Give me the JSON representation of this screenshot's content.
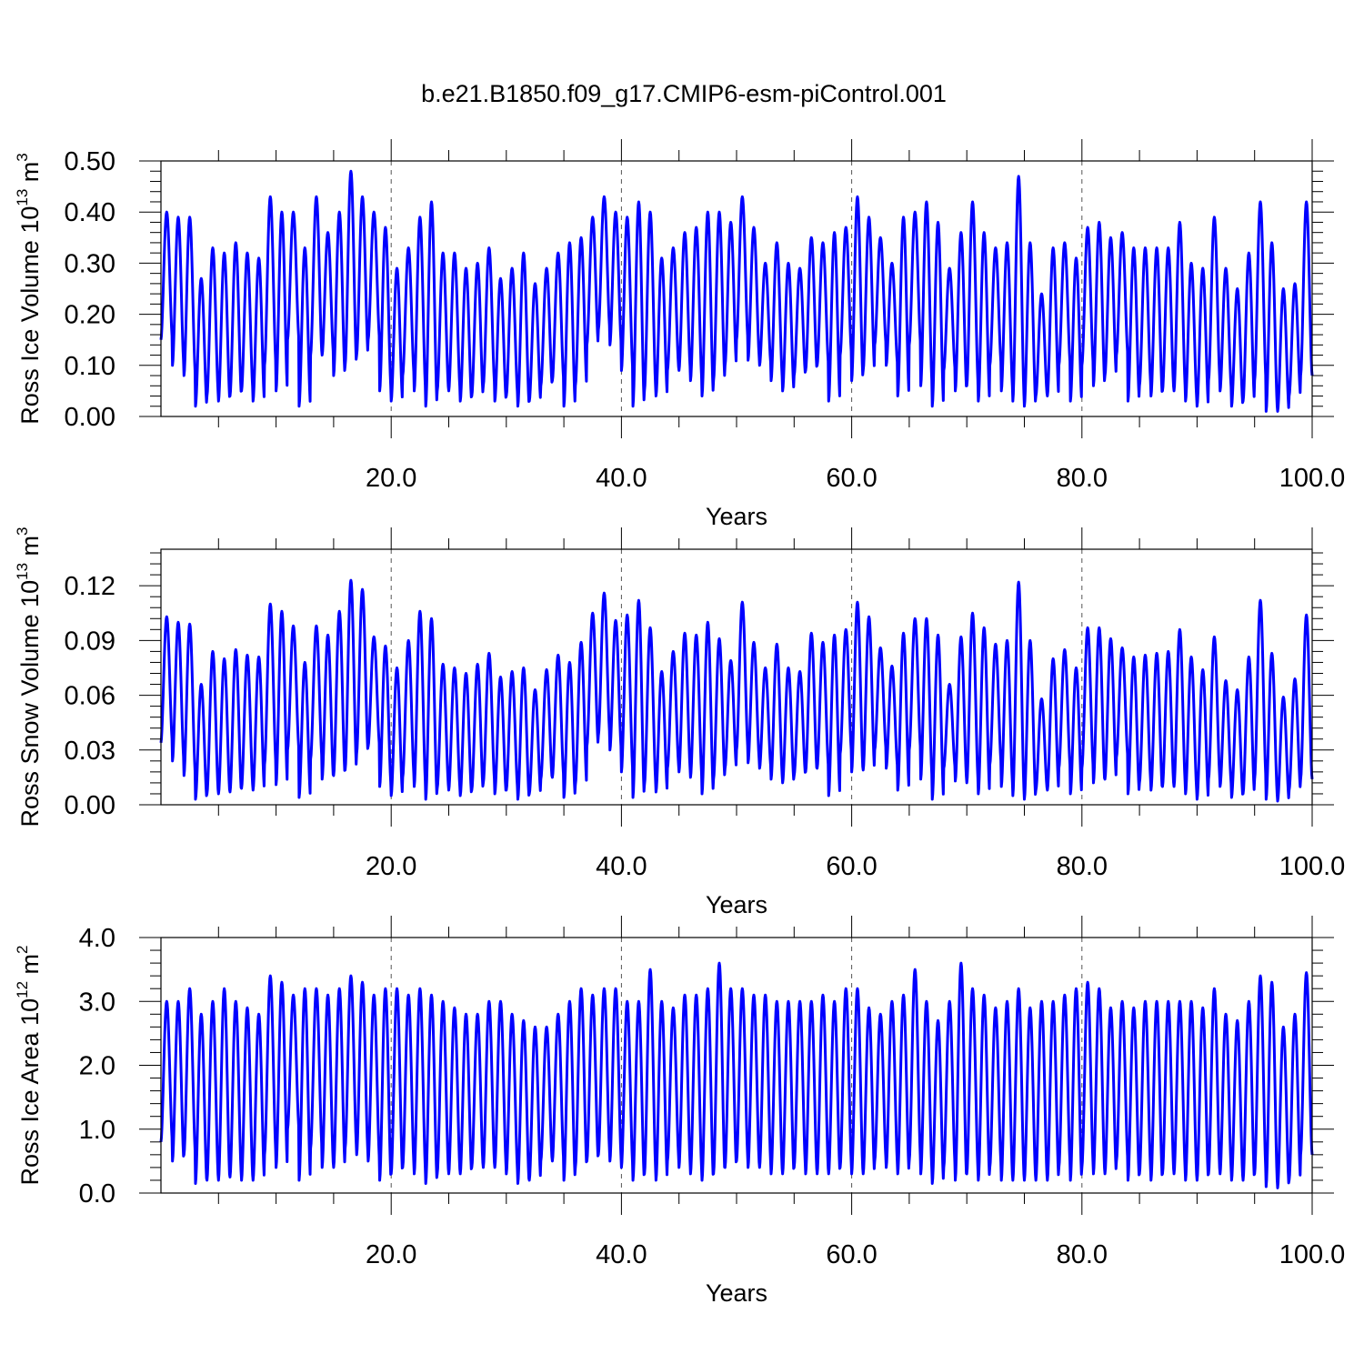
{
  "figure": {
    "title": "b.e21.B1850.f09_g17.CMIP6-esm-piControl.001"
  },
  "style": {
    "line_color": "#0000ff",
    "axis_color": "#000000",
    "background": "#ffffff"
  },
  "chart_data": [
    {
      "type": "line",
      "title": "",
      "xlabel": "Years",
      "ylabel": "Ross Ice Volume 10¹³ m³",
      "ylabel_parts": {
        "base": "Ross Ice Volume 10",
        "exp": "13",
        "unit": " m",
        "unit_exp": "3"
      },
      "xlim": [
        0.0,
        100.0
      ],
      "ylim": [
        0.0,
        0.5
      ],
      "xticks": [
        20.0,
        40.0,
        60.0,
        80.0,
        100.0
      ],
      "xtick_labels": [
        "20.0",
        "40.0",
        "60.0",
        "80.0",
        "100.0"
      ],
      "yticks": [
        0.0,
        0.1,
        0.2,
        0.3,
        0.4,
        0.5
      ],
      "ytick_labels": [
        "0.00",
        "0.10",
        "0.20",
        "0.30",
        "0.40",
        "0.50"
      ],
      "x_gridlines": [
        20,
        40,
        60,
        80
      ],
      "series": [
        {
          "x_start": 0.0,
          "x_end": 100.0,
          "annual_peaks": [
            0.4,
            0.39,
            0.39,
            0.27,
            0.33,
            0.32,
            0.34,
            0.32,
            0.31,
            0.43,
            0.4,
            0.4,
            0.33,
            0.43,
            0.36,
            0.4,
            0.48,
            0.43,
            0.4,
            0.37,
            0.29,
            0.33,
            0.39,
            0.42,
            0.32,
            0.32,
            0.29,
            0.3,
            0.33,
            0.27,
            0.29,
            0.32,
            0.26,
            0.29,
            0.32,
            0.34,
            0.35,
            0.39,
            0.43,
            0.4,
            0.39,
            0.42,
            0.4,
            0.31,
            0.33,
            0.36,
            0.37,
            0.4,
            0.4,
            0.38,
            0.43,
            0.37,
            0.3,
            0.34,
            0.3,
            0.29,
            0.35,
            0.34,
            0.36,
            0.37,
            0.43,
            0.39,
            0.35,
            0.3,
            0.39,
            0.4,
            0.42,
            0.38,
            0.29,
            0.36,
            0.42,
            0.36,
            0.33,
            0.34,
            0.47,
            0.34,
            0.24,
            0.33,
            0.34,
            0.31,
            0.37,
            0.38,
            0.35,
            0.36,
            0.33,
            0.33,
            0.33,
            0.33,
            0.38,
            0.3,
            0.29,
            0.39,
            0.29,
            0.25,
            0.32,
            0.42,
            0.34,
            0.25,
            0.26,
            0.42
          ],
          "annual_troughs": [
            0.15,
            0.1,
            0.08,
            0.02,
            0.04,
            0.03,
            0.04,
            0.05,
            0.03,
            0.1,
            0.05,
            0.15,
            0.02,
            0.12,
            0.12,
            0.08,
            0.1,
            0.12,
            0.15,
            0.05,
            0.03,
            0.08,
            0.05,
            0.02,
            0.05,
            0.05,
            0.03,
            0.04,
            0.06,
            0.03,
            0.04,
            0.02,
            0.03,
            0.06,
            0.07,
            0.02,
            0.06,
            0.14,
            0.17,
            0.14,
            0.09,
            0.02,
            0.05,
            0.04,
            0.09,
            0.09,
            0.07,
            0.04,
            0.07,
            0.1,
            0.15,
            0.11,
            0.1,
            0.07,
            0.05,
            0.08,
            0.09,
            0.1,
            0.03,
            0.12,
            0.07,
            0.09,
            0.14,
            0.1,
            0.04,
            0.14,
            0.06,
            0.02,
            0.09,
            0.05,
            0.06,
            0.03,
            0.1,
            0.05,
            0.03,
            0.02,
            0.04,
            0.04,
            0.1,
            0.03,
            0.1,
            0.06,
            0.08,
            0.12,
            0.03,
            0.06,
            0.04,
            0.05,
            0.05,
            0.03,
            0.02,
            0.07,
            0.05,
            0.02,
            0.03,
            0.07,
            0.01,
            0.01,
            0.04,
            0.08
          ]
        }
      ]
    },
    {
      "type": "line",
      "title": "",
      "xlabel": "Years",
      "ylabel": "Ross Snow Volume 10¹³ m³",
      "ylabel_parts": {
        "base": "Ross Snow Volume 10",
        "exp": "13",
        "unit": " m",
        "unit_exp": "3"
      },
      "xlim": [
        0.0,
        100.0
      ],
      "ylim": [
        0.0,
        0.14
      ],
      "xticks": [
        20.0,
        40.0,
        60.0,
        80.0,
        100.0
      ],
      "xtick_labels": [
        "20.0",
        "40.0",
        "60.0",
        "80.0",
        "100.0"
      ],
      "yticks": [
        0.0,
        0.03,
        0.06,
        0.09,
        0.12
      ],
      "ytick_labels": [
        "0.00",
        "0.03",
        "0.06",
        "0.09",
        "0.12"
      ],
      "x_gridlines": [
        20,
        40,
        60,
        80
      ],
      "series": [
        {
          "x_start": 0.0,
          "x_end": 100.0,
          "annual_peaks": [
            0.103,
            0.1,
            0.099,
            0.066,
            0.084,
            0.08,
            0.085,
            0.082,
            0.081,
            0.11,
            0.106,
            0.098,
            0.078,
            0.098,
            0.093,
            0.106,
            0.123,
            0.118,
            0.092,
            0.087,
            0.075,
            0.09,
            0.106,
            0.102,
            0.077,
            0.075,
            0.072,
            0.077,
            0.083,
            0.07,
            0.073,
            0.075,
            0.063,
            0.074,
            0.082,
            0.078,
            0.089,
            0.105,
            0.116,
            0.101,
            0.104,
            0.112,
            0.097,
            0.073,
            0.084,
            0.094,
            0.093,
            0.1,
            0.091,
            0.079,
            0.111,
            0.089,
            0.075,
            0.088,
            0.075,
            0.073,
            0.094,
            0.089,
            0.093,
            0.096,
            0.111,
            0.103,
            0.086,
            0.076,
            0.094,
            0.102,
            0.102,
            0.093,
            0.066,
            0.092,
            0.105,
            0.097,
            0.088,
            0.09,
            0.122,
            0.09,
            0.058,
            0.08,
            0.085,
            0.075,
            0.097,
            0.097,
            0.091,
            0.086,
            0.081,
            0.082,
            0.083,
            0.084,
            0.096,
            0.081,
            0.074,
            0.092,
            0.068,
            0.063,
            0.081,
            0.112,
            0.083,
            0.059,
            0.069,
            0.104
          ],
          "annual_troughs": [
            0.034,
            0.024,
            0.016,
            0.003,
            0.006,
            0.006,
            0.007,
            0.009,
            0.008,
            0.022,
            0.011,
            0.03,
            0.004,
            0.025,
            0.014,
            0.016,
            0.019,
            0.028,
            0.032,
            0.01,
            0.005,
            0.015,
            0.01,
            0.003,
            0.009,
            0.008,
            0.005,
            0.008,
            0.012,
            0.006,
            0.008,
            0.003,
            0.006,
            0.014,
            0.015,
            0.004,
            0.011,
            0.032,
            0.038,
            0.03,
            0.018,
            0.004,
            0.011,
            0.007,
            0.02,
            0.018,
            0.015,
            0.006,
            0.014,
            0.02,
            0.03,
            0.023,
            0.02,
            0.014,
            0.012,
            0.016,
            0.018,
            0.02,
            0.005,
            0.028,
            0.018,
            0.019,
            0.03,
            0.02,
            0.008,
            0.03,
            0.014,
            0.003,
            0.02,
            0.013,
            0.012,
            0.006,
            0.022,
            0.01,
            0.005,
            0.003,
            0.008,
            0.008,
            0.02,
            0.006,
            0.02,
            0.012,
            0.014,
            0.026,
            0.006,
            0.012,
            0.008,
            0.01,
            0.01,
            0.006,
            0.003,
            0.014,
            0.01,
            0.004,
            0.006,
            0.014,
            0.003,
            0.002,
            0.008,
            0.014
          ]
        }
      ]
    },
    {
      "type": "line",
      "title": "",
      "xlabel": "Years",
      "ylabel": "Ross Ice Area 10¹² m²",
      "ylabel_parts": {
        "base": "Ross Ice Area 10",
        "exp": "12",
        "unit": " m",
        "unit_exp": "2"
      },
      "xlim": [
        0.0,
        100.0
      ],
      "ylim": [
        0.0,
        4.0
      ],
      "xticks": [
        20.0,
        40.0,
        60.0,
        80.0,
        100.0
      ],
      "xtick_labels": [
        "20.0",
        "40.0",
        "60.0",
        "80.0",
        "100.0"
      ],
      "yticks": [
        0.0,
        1.0,
        2.0,
        3.0,
        4.0
      ],
      "ytick_labels": [
        "0.0",
        "1.0",
        "2.0",
        "3.0",
        "4.0"
      ],
      "x_gridlines": [
        20,
        40,
        60,
        80
      ],
      "series": [
        {
          "x_start": 0.0,
          "x_end": 100.0,
          "annual_peaks": [
            3.0,
            3.0,
            3.2,
            2.8,
            3.0,
            3.2,
            3.0,
            2.9,
            2.8,
            3.4,
            3.3,
            3.1,
            3.2,
            3.2,
            3.1,
            3.2,
            3.4,
            3.3,
            3.1,
            3.2,
            3.2,
            3.1,
            3.2,
            3.1,
            3.0,
            2.9,
            2.8,
            2.8,
            3.0,
            3.0,
            2.8,
            2.7,
            2.6,
            2.6,
            2.8,
            3.0,
            3.2,
            3.1,
            3.2,
            3.2,
            3.0,
            3.0,
            3.5,
            3.0,
            2.9,
            3.1,
            3.1,
            3.2,
            3.6,
            3.2,
            3.2,
            3.1,
            3.1,
            3.0,
            3.0,
            3.0,
            3.0,
            3.1,
            3.0,
            3.2,
            3.2,
            2.9,
            2.8,
            3.0,
            3.1,
            3.5,
            3.0,
            2.7,
            3.0,
            3.6,
            3.2,
            3.1,
            2.9,
            3.0,
            3.2,
            2.9,
            3.0,
            3.0,
            3.1,
            3.2,
            3.3,
            3.2,
            2.9,
            3.0,
            2.9,
            3.0,
            3.0,
            3.0,
            3.0,
            3.0,
            2.9,
            3.2,
            2.8,
            2.7,
            3.0,
            3.4,
            3.3,
            2.6,
            2.8,
            3.45
          ],
          "annual_troughs": [
            0.8,
            0.5,
            0.6,
            0.15,
            0.2,
            0.2,
            0.25,
            0.2,
            0.2,
            0.6,
            0.4,
            1.0,
            0.2,
            0.7,
            0.4,
            0.4,
            0.7,
            0.6,
            0.5,
            0.2,
            0.3,
            0.4,
            0.3,
            0.15,
            0.3,
            0.3,
            0.3,
            0.4,
            0.4,
            0.4,
            0.3,
            0.15,
            0.2,
            0.5,
            0.5,
            0.2,
            0.4,
            0.5,
            0.6,
            0.5,
            0.4,
            0.2,
            0.3,
            0.2,
            0.5,
            0.4,
            0.3,
            0.2,
            0.3,
            0.4,
            0.5,
            0.4,
            0.4,
            0.3,
            0.3,
            0.4,
            0.3,
            0.3,
            0.3,
            0.4,
            0.3,
            0.3,
            0.5,
            0.4,
            0.3,
            0.5,
            0.3,
            0.15,
            0.4,
            0.2,
            0.3,
            0.2,
            0.4,
            0.2,
            0.2,
            0.2,
            0.2,
            0.2,
            0.4,
            0.2,
            0.4,
            0.3,
            0.3,
            0.5,
            0.2,
            0.3,
            0.2,
            0.3,
            0.3,
            0.2,
            0.2,
            0.3,
            0.3,
            0.2,
            0.2,
            0.3,
            0.1,
            0.08,
            0.2,
            0.6
          ]
        }
      ]
    }
  ]
}
